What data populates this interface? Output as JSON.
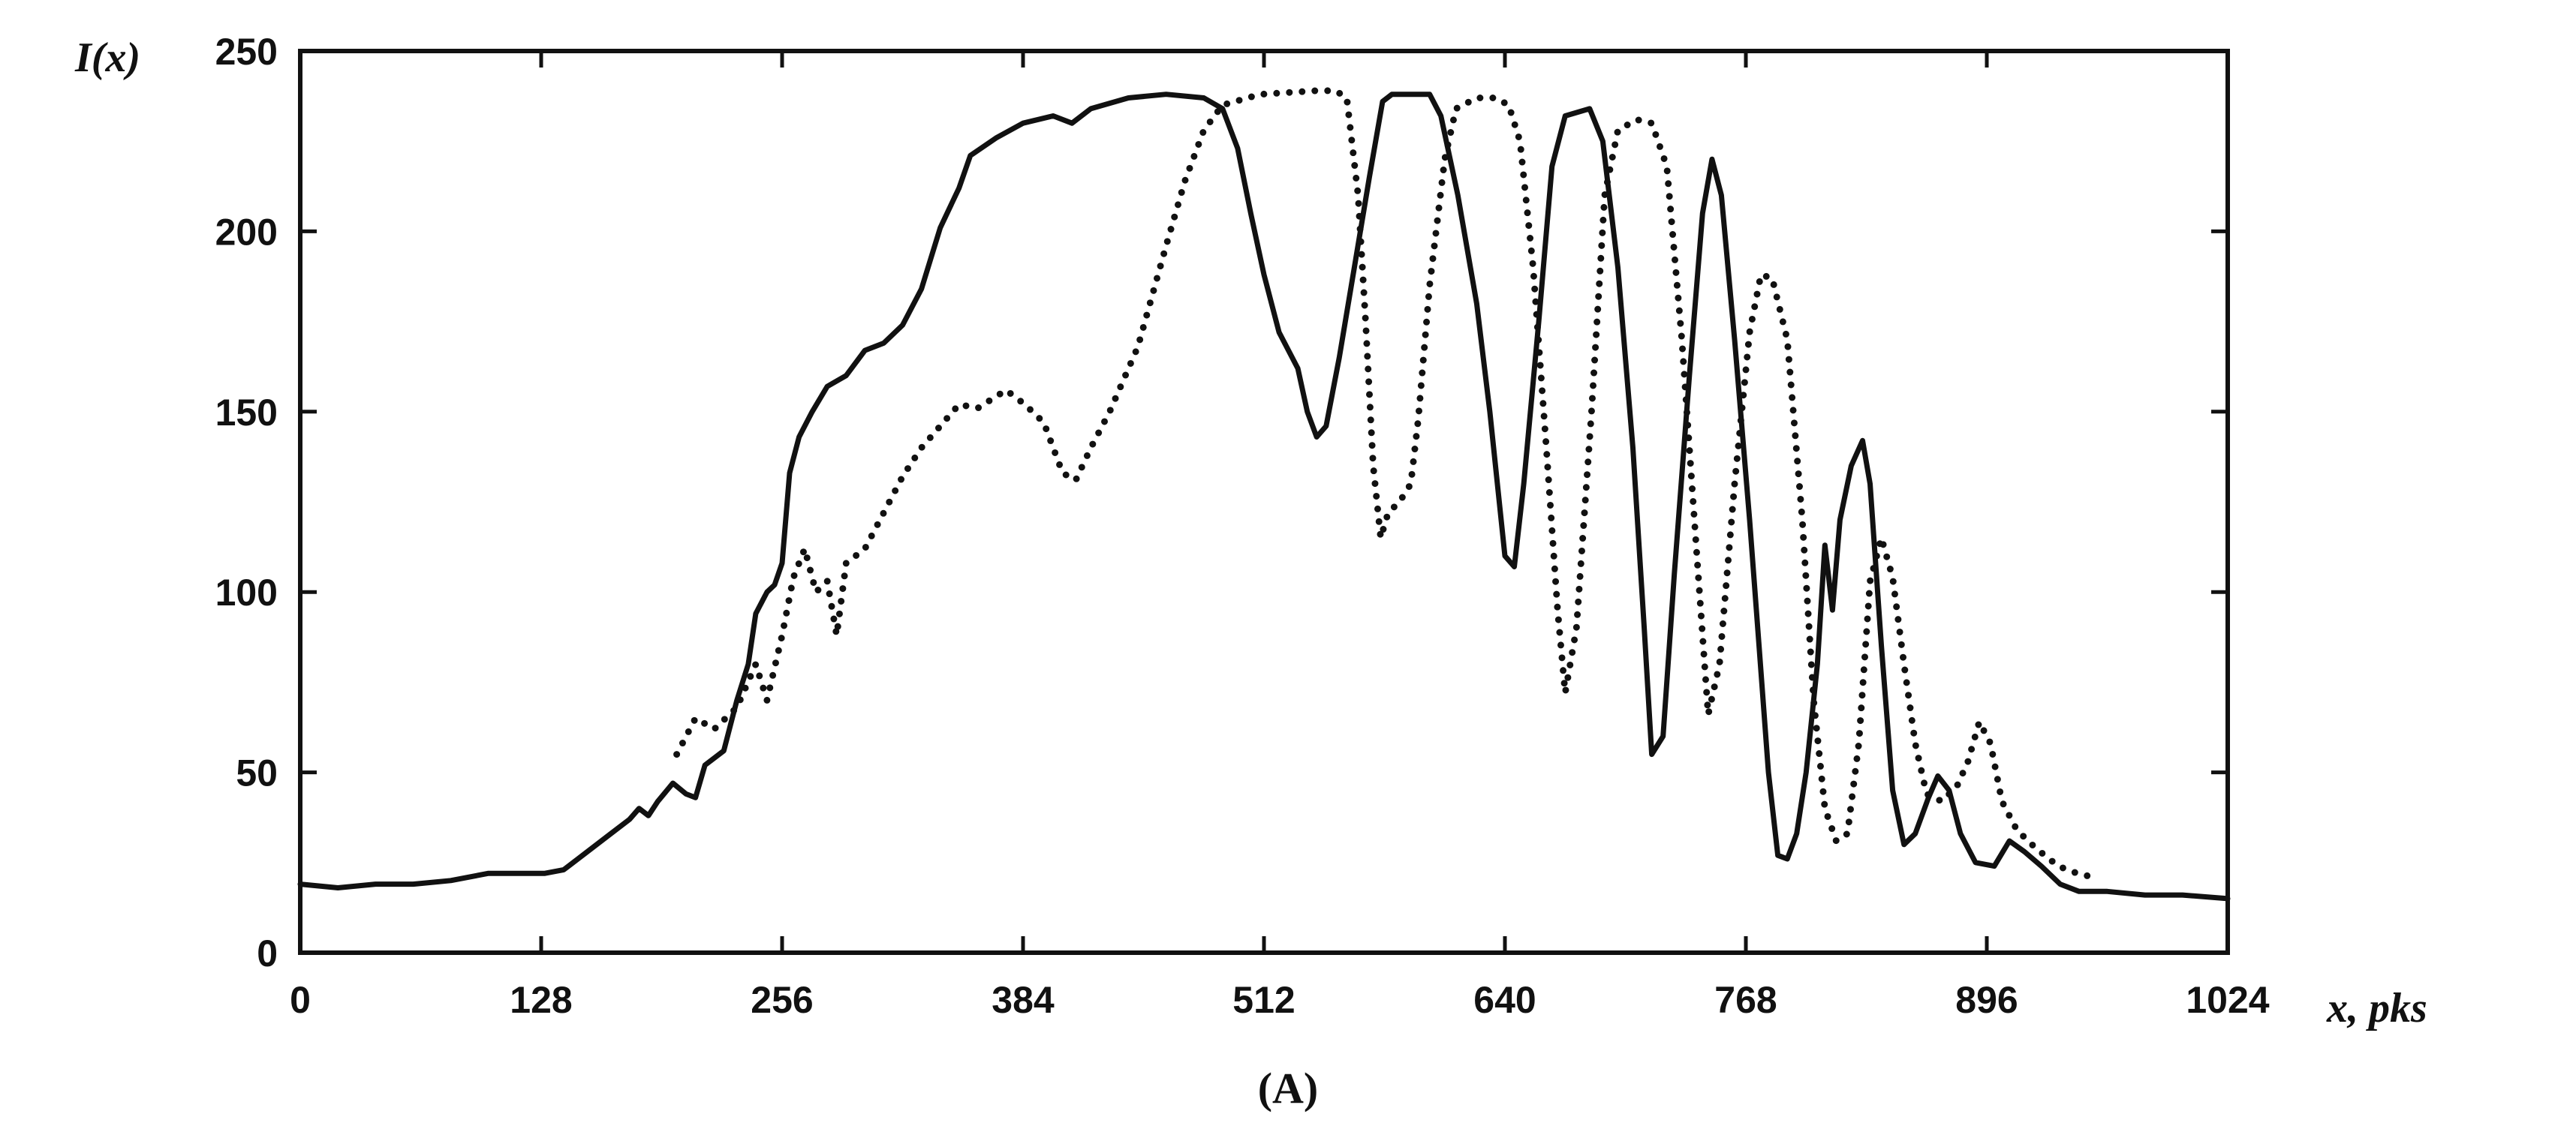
{
  "chart_data": {
    "type": "line",
    "ylabel": "I(x)",
    "xlabel": "x, pks",
    "panel_label": "(A)",
    "xlim": [
      0,
      1024
    ],
    "ylim": [
      0,
      250
    ],
    "xticks": [
      0,
      128,
      256,
      384,
      512,
      640,
      768,
      896,
      1024
    ],
    "yticks": [
      0,
      50,
      100,
      150,
      200,
      250
    ],
    "grid": false,
    "series": [
      {
        "style": "solid",
        "points": [
          [
            0,
            19
          ],
          [
            20,
            18
          ],
          [
            40,
            19
          ],
          [
            60,
            19
          ],
          [
            80,
            20
          ],
          [
            100,
            22
          ],
          [
            110,
            22
          ],
          [
            130,
            22
          ],
          [
            140,
            23
          ],
          [
            150,
            27
          ],
          [
            165,
            33
          ],
          [
            175,
            37
          ],
          [
            180,
            40
          ],
          [
            185,
            38
          ],
          [
            190,
            42
          ],
          [
            198,
            47
          ],
          [
            205,
            44
          ],
          [
            210,
            43
          ],
          [
            215,
            52
          ],
          [
            225,
            56
          ],
          [
            232,
            70
          ],
          [
            238,
            80
          ],
          [
            242,
            94
          ],
          [
            248,
            100
          ],
          [
            252,
            102
          ],
          [
            256,
            108
          ],
          [
            260,
            133
          ],
          [
            265,
            143
          ],
          [
            272,
            150
          ],
          [
            280,
            157
          ],
          [
            290,
            160
          ],
          [
            300,
            167
          ],
          [
            310,
            169
          ],
          [
            320,
            174
          ],
          [
            330,
            184
          ],
          [
            340,
            201
          ],
          [
            350,
            212
          ],
          [
            356,
            221
          ],
          [
            370,
            226
          ],
          [
            384,
            230
          ],
          [
            400,
            232
          ],
          [
            410,
            230
          ],
          [
            420,
            234
          ],
          [
            440,
            237
          ],
          [
            460,
            238
          ],
          [
            480,
            237
          ],
          [
            490,
            234
          ],
          [
            498,
            223
          ],
          [
            505,
            205
          ],
          [
            512,
            188
          ],
          [
            520,
            172
          ],
          [
            530,
            162
          ],
          [
            535,
            150
          ],
          [
            540,
            143
          ],
          [
            545,
            146
          ],
          [
            552,
            165
          ],
          [
            560,
            190
          ],
          [
            568,
            215
          ],
          [
            575,
            236
          ],
          [
            580,
            238
          ],
          [
            600,
            238
          ],
          [
            606,
            232
          ],
          [
            615,
            210
          ],
          [
            625,
            180
          ],
          [
            632,
            150
          ],
          [
            640,
            110
          ],
          [
            645,
            107
          ],
          [
            650,
            130
          ],
          [
            658,
            175
          ],
          [
            665,
            218
          ],
          [
            672,
            232
          ],
          [
            685,
            234
          ],
          [
            692,
            225
          ],
          [
            700,
            190
          ],
          [
            708,
            140
          ],
          [
            714,
            90
          ],
          [
            718,
            55
          ],
          [
            724,
            60
          ],
          [
            730,
            105
          ],
          [
            738,
            160
          ],
          [
            745,
            205
          ],
          [
            750,
            220
          ],
          [
            755,
            210
          ],
          [
            762,
            170
          ],
          [
            770,
            120
          ],
          [
            775,
            85
          ],
          [
            780,
            50
          ],
          [
            785,
            27
          ],
          [
            790,
            26
          ],
          [
            795,
            33
          ],
          [
            800,
            50
          ],
          [
            806,
            80
          ],
          [
            810,
            113
          ],
          [
            814,
            95
          ],
          [
            818,
            120
          ],
          [
            824,
            135
          ],
          [
            830,
            142
          ],
          [
            834,
            130
          ],
          [
            840,
            85
          ],
          [
            846,
            45
          ],
          [
            852,
            30
          ],
          [
            858,
            33
          ],
          [
            865,
            43
          ],
          [
            870,
            49
          ],
          [
            876,
            45
          ],
          [
            882,
            33
          ],
          [
            890,
            25
          ],
          [
            900,
            24
          ],
          [
            908,
            31
          ],
          [
            916,
            28
          ],
          [
            925,
            24
          ],
          [
            935,
            19
          ],
          [
            945,
            17
          ],
          [
            960,
            17
          ],
          [
            980,
            16
          ],
          [
            1000,
            16
          ],
          [
            1024,
            15
          ]
        ]
      },
      {
        "style": "dotted",
        "points": [
          [
            200,
            55
          ],
          [
            210,
            65
          ],
          [
            220,
            62
          ],
          [
            232,
            68
          ],
          [
            242,
            80
          ],
          [
            248,
            70
          ],
          [
            256,
            88
          ],
          [
            262,
            104
          ],
          [
            268,
            112
          ],
          [
            274,
            100
          ],
          [
            280,
            103
          ],
          [
            285,
            88
          ],
          [
            290,
            108
          ],
          [
            300,
            112
          ],
          [
            310,
            122
          ],
          [
            320,
            132
          ],
          [
            330,
            140
          ],
          [
            340,
            146
          ],
          [
            350,
            152
          ],
          [
            360,
            151
          ],
          [
            375,
            156
          ],
          [
            385,
            152
          ],
          [
            395,
            147
          ],
          [
            405,
            133
          ],
          [
            412,
            131
          ],
          [
            420,
            140
          ],
          [
            430,
            150
          ],
          [
            445,
            168
          ],
          [
            460,
            196
          ],
          [
            470,
            214
          ],
          [
            480,
            228
          ],
          [
            490,
            235
          ],
          [
            510,
            238
          ],
          [
            540,
            239
          ],
          [
            550,
            239
          ],
          [
            556,
            237
          ],
          [
            562,
            210
          ],
          [
            566,
            175
          ],
          [
            570,
            135
          ],
          [
            574,
            115
          ],
          [
            578,
            122
          ],
          [
            584,
            125
          ],
          [
            590,
            130
          ],
          [
            594,
            148
          ],
          [
            600,
            185
          ],
          [
            608,
            220
          ],
          [
            614,
            234
          ],
          [
            625,
            237
          ],
          [
            635,
            237
          ],
          [
            642,
            235
          ],
          [
            648,
            225
          ],
          [
            655,
            190
          ],
          [
            662,
            140
          ],
          [
            668,
            95
          ],
          [
            672,
            72
          ],
          [
            678,
            90
          ],
          [
            686,
            150
          ],
          [
            693,
            210
          ],
          [
            700,
            228
          ],
          [
            710,
            231
          ],
          [
            718,
            230
          ],
          [
            726,
            218
          ],
          [
            734,
            170
          ],
          [
            742,
            110
          ],
          [
            748,
            66
          ],
          [
            754,
            80
          ],
          [
            762,
            130
          ],
          [
            770,
            172
          ],
          [
            776,
            188
          ],
          [
            782,
            187
          ],
          [
            790,
            170
          ],
          [
            798,
            120
          ],
          [
            804,
            70
          ],
          [
            810,
            40
          ],
          [
            816,
            31
          ],
          [
            822,
            33
          ],
          [
            828,
            58
          ],
          [
            834,
            103
          ],
          [
            840,
            115
          ],
          [
            846,
            104
          ],
          [
            852,
            80
          ],
          [
            858,
            58
          ],
          [
            864,
            44
          ],
          [
            872,
            42
          ],
          [
            880,
            46
          ],
          [
            886,
            53
          ],
          [
            892,
            64
          ],
          [
            898,
            58
          ],
          [
            904,
            42
          ],
          [
            912,
            34
          ],
          [
            922,
            29
          ],
          [
            934,
            24
          ],
          [
            944,
            22
          ],
          [
            952,
            21
          ]
        ]
      }
    ]
  }
}
